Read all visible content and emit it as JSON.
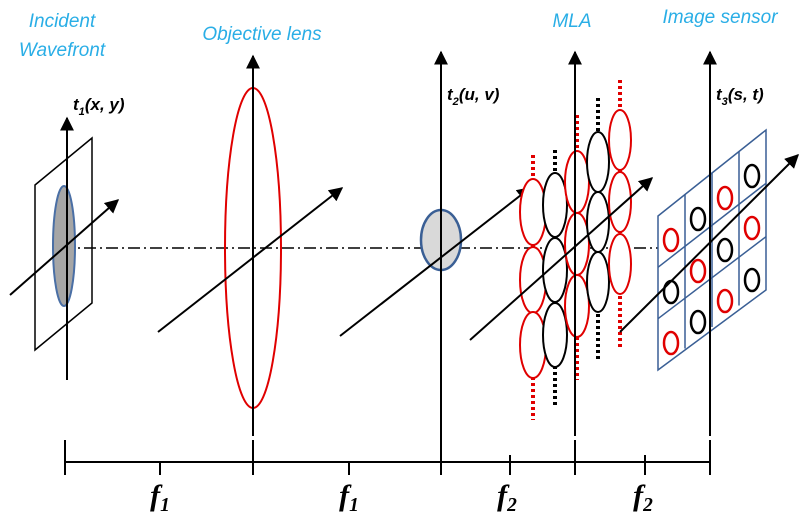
{
  "header": {
    "incident_wavefront": [
      "Incident",
      "Wavefront"
    ],
    "objective_lens": "Objective lens",
    "mla": "MLA",
    "image_sensor": "Image sensor"
  },
  "planes": [
    {
      "symbol": "t",
      "subscript": "1",
      "args": "(x, y)"
    },
    {
      "symbol": "t",
      "subscript": "2",
      "args": "(u, v)"
    },
    {
      "symbol": "t",
      "subscript": "3",
      "args": "(s, t)"
    }
  ],
  "distances": [
    {
      "symbol": "f",
      "subscript": "1"
    },
    {
      "symbol": "f",
      "subscript": "1"
    },
    {
      "symbol": "f",
      "subscript": "2"
    },
    {
      "symbol": "f",
      "subscript": "2"
    }
  ]
}
